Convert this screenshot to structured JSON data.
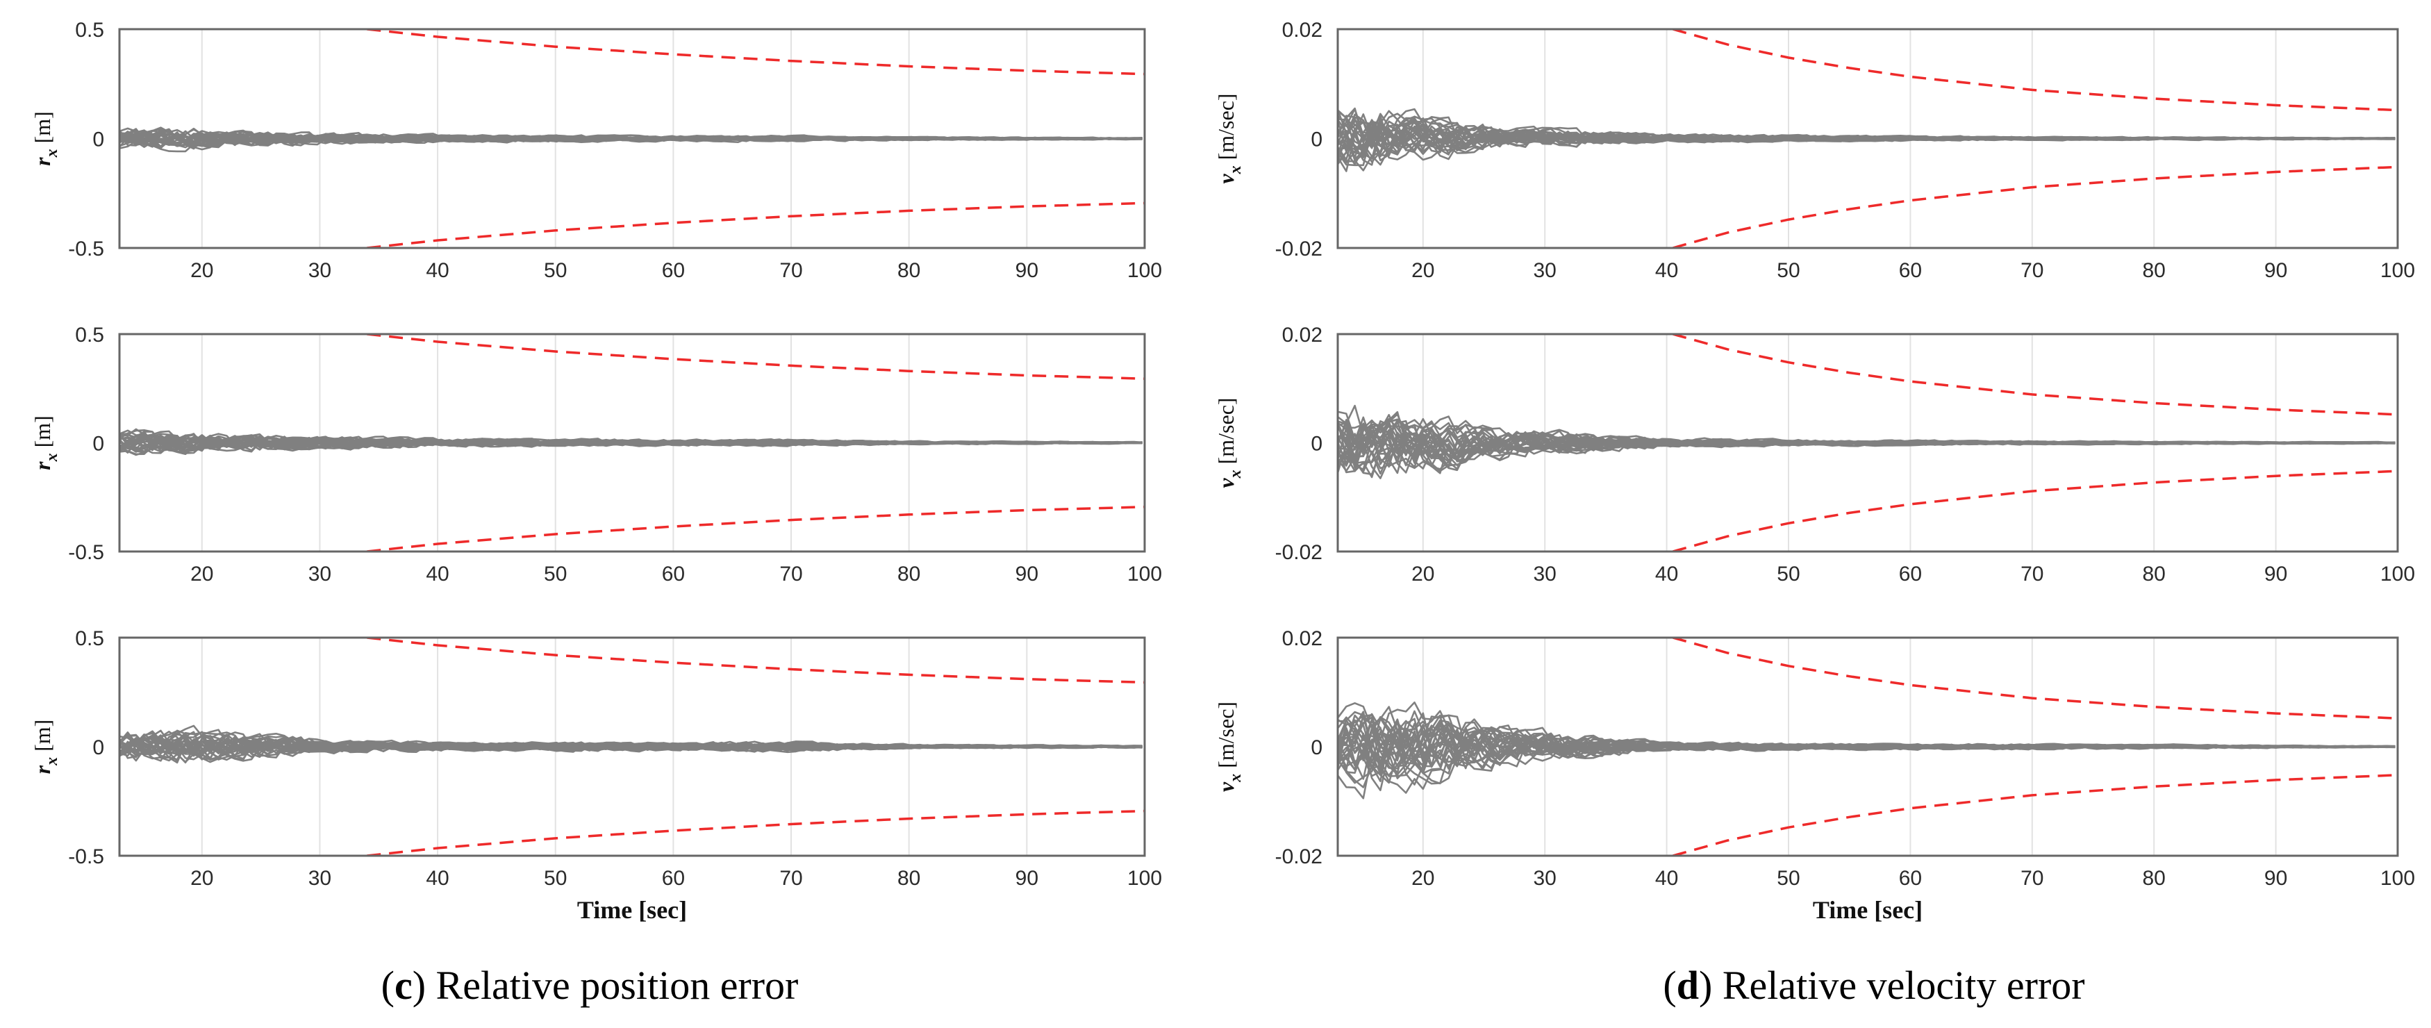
{
  "colors": {
    "trace": "#808080",
    "bound": "#ee2a2a",
    "grid": "#e2e2e2",
    "axis": "#666666"
  },
  "captions": {
    "left": {
      "letter": "c",
      "open": "(",
      "close": ")",
      "text": " Relative position error"
    },
    "right": {
      "letter": "d",
      "open": "(",
      "close": ")",
      "text": " Relative velocity error"
    }
  },
  "chart_data": [
    {
      "id": "c1",
      "type": "line",
      "title": "",
      "ylabel_var": "r",
      "ylabel_sub": "x",
      "ylabel_unit": "[m]",
      "xlabel": "",
      "xlim": [
        13,
        100
      ],
      "ylim": [
        -0.5,
        0.5
      ],
      "xticks": [
        20,
        30,
        40,
        50,
        60,
        70,
        80,
        90,
        100
      ],
      "xtick_labels": [
        "20",
        "30",
        "40",
        "50",
        "60",
        "70",
        "80",
        "90",
        "100"
      ],
      "yticks": [
        -0.5,
        0,
        0.5
      ],
      "ytick_labels": [
        "-0.5",
        "0",
        "0.5"
      ],
      "series": [
        {
          "name": "upper bound",
          "style": "dashed",
          "x": [
            34,
            40,
            50,
            60,
            70,
            80,
            90,
            100
          ],
          "y": [
            0.5,
            0.465,
            0.42,
            0.385,
            0.355,
            0.33,
            0.31,
            0.295
          ]
        },
        {
          "name": "lower bound",
          "style": "dashed",
          "x": [
            34,
            40,
            50,
            60,
            70,
            80,
            90,
            100
          ],
          "y": [
            -0.5,
            -0.465,
            -0.42,
            -0.385,
            -0.355,
            -0.33,
            -0.31,
            -0.295
          ]
        },
        {
          "name": "Monte Carlo error envelope",
          "style": "runs",
          "runs": 30,
          "amplitude": [
            [
              13,
              0.09
            ],
            [
              20,
              0.07
            ],
            [
              30,
              0.04
            ],
            [
              40,
              0.025
            ],
            [
              60,
              0.02
            ],
            [
              70,
              0.02
            ],
            [
              80,
              0.012
            ],
            [
              100,
              0.006
            ]
          ]
        }
      ]
    },
    {
      "id": "c2",
      "type": "line",
      "title": "",
      "ylabel_var": "r",
      "ylabel_sub": "x",
      "ylabel_unit": "[m]",
      "xlabel": "",
      "xlim": [
        13,
        100
      ],
      "ylim": [
        -0.5,
        0.5
      ],
      "xticks": [
        20,
        30,
        40,
        50,
        60,
        70,
        80,
        90,
        100
      ],
      "xtick_labels": [
        "20",
        "30",
        "40",
        "50",
        "60",
        "70",
        "80",
        "90",
        "100"
      ],
      "yticks": [
        -0.5,
        0,
        0.5
      ],
      "ytick_labels": [
        "-0.5",
        "0",
        "0.5"
      ],
      "series": [
        {
          "name": "upper bound",
          "style": "dashed",
          "x": [
            34,
            40,
            50,
            60,
            70,
            80,
            90,
            100
          ],
          "y": [
            0.5,
            0.465,
            0.42,
            0.385,
            0.355,
            0.33,
            0.31,
            0.295
          ]
        },
        {
          "name": "lower bound",
          "style": "dashed",
          "x": [
            34,
            40,
            50,
            60,
            70,
            80,
            90,
            100
          ],
          "y": [
            -0.5,
            -0.465,
            -0.42,
            -0.385,
            -0.355,
            -0.33,
            -0.31,
            -0.295
          ]
        },
        {
          "name": "Monte Carlo error envelope",
          "style": "runs",
          "runs": 30,
          "amplitude": [
            [
              13,
              0.1
            ],
            [
              20,
              0.07
            ],
            [
              30,
              0.045
            ],
            [
              40,
              0.03
            ],
            [
              60,
              0.022
            ],
            [
              70,
              0.022
            ],
            [
              80,
              0.012
            ],
            [
              100,
              0.006
            ]
          ]
        }
      ]
    },
    {
      "id": "c3",
      "type": "line",
      "title": "",
      "ylabel_var": "r",
      "ylabel_sub": "x",
      "ylabel_unit": "[m]",
      "xlabel": "Time [sec]",
      "xlim": [
        13,
        100
      ],
      "ylim": [
        -0.5,
        0.5
      ],
      "xticks": [
        20,
        30,
        40,
        50,
        60,
        70,
        80,
        90,
        100
      ],
      "xtick_labels": [
        "20",
        "30",
        "40",
        "50",
        "60",
        "70",
        "80",
        "90",
        "100"
      ],
      "yticks": [
        -0.5,
        0,
        0.5
      ],
      "ytick_labels": [
        "-0.5",
        "0",
        "0.5"
      ],
      "series": [
        {
          "name": "upper bound",
          "style": "dashed",
          "x": [
            34,
            40,
            50,
            60,
            70,
            80,
            90,
            100
          ],
          "y": [
            0.5,
            0.465,
            0.42,
            0.385,
            0.355,
            0.33,
            0.31,
            0.295
          ]
        },
        {
          "name": "lower bound",
          "style": "dashed",
          "x": [
            34,
            40,
            50,
            60,
            70,
            80,
            90,
            100
          ],
          "y": [
            -0.5,
            -0.465,
            -0.42,
            -0.385,
            -0.355,
            -0.33,
            -0.31,
            -0.295
          ]
        },
        {
          "name": "Monte Carlo error envelope",
          "style": "runs",
          "runs": 30,
          "amplitude": [
            [
              13,
              0.12
            ],
            [
              20,
              0.12
            ],
            [
              30,
              0.05
            ],
            [
              40,
              0.03
            ],
            [
              60,
              0.03
            ],
            [
              70,
              0.035
            ],
            [
              80,
              0.015
            ],
            [
              100,
              0.008
            ]
          ]
        }
      ]
    },
    {
      "id": "d1",
      "type": "line",
      "title": "",
      "ylabel_var": "v",
      "ylabel_sub": "x",
      "ylabel_unit": "[m/sec]",
      "xlabel": "",
      "xlim": [
        13,
        100
      ],
      "ylim": [
        -0.02,
        0.02
      ],
      "xticks": [
        20,
        30,
        40,
        50,
        60,
        70,
        80,
        90,
        100
      ],
      "xtick_labels": [
        "20",
        "30",
        "40",
        "50",
        "60",
        "70",
        "80",
        "90",
        "100"
      ],
      "yticks": [
        -0.02,
        0,
        0.02
      ],
      "ytick_labels": [
        "-0.02",
        "0",
        "0.02"
      ],
      "series": [
        {
          "name": "upper bound",
          "style": "dashed",
          "x": [
            40.5,
            45,
            50,
            55,
            60,
            70,
            80,
            90,
            100
          ],
          "y": [
            0.02,
            0.0172,
            0.0148,
            0.0129,
            0.0113,
            0.0089,
            0.0073,
            0.0061,
            0.0052
          ]
        },
        {
          "name": "lower bound",
          "style": "dashed",
          "x": [
            40.5,
            45,
            50,
            55,
            60,
            70,
            80,
            90,
            100
          ],
          "y": [
            -0.02,
            -0.0172,
            -0.0148,
            -0.0129,
            -0.0113,
            -0.0089,
            -0.0073,
            -0.0061,
            -0.0052
          ]
        },
        {
          "name": "Monte Carlo error envelope",
          "style": "runs",
          "runs": 30,
          "amplitude": [
            [
              13,
              0.011
            ],
            [
              20,
              0.006
            ],
            [
              27,
              0.003
            ],
            [
              40,
              0.0012
            ],
            [
              55,
              0.0008
            ],
            [
              70,
              0.0005
            ],
            [
              100,
              0.0002
            ]
          ]
        }
      ]
    },
    {
      "id": "d2",
      "type": "line",
      "title": "",
      "ylabel_var": "v",
      "ylabel_sub": "x",
      "ylabel_unit": "[m/sec]",
      "xlabel": "",
      "xlim": [
        13,
        100
      ],
      "ylim": [
        -0.02,
        0.02
      ],
      "xticks": [
        20,
        30,
        40,
        50,
        60,
        70,
        80,
        90,
        100
      ],
      "xtick_labels": [
        "20",
        "30",
        "40",
        "50",
        "60",
        "70",
        "80",
        "90",
        "100"
      ],
      "yticks": [
        -0.02,
        0,
        0.02
      ],
      "ytick_labels": [
        "-0.02",
        "0",
        "0.02"
      ],
      "series": [
        {
          "name": "upper bound",
          "style": "dashed",
          "x": [
            40.5,
            45,
            50,
            55,
            60,
            70,
            80,
            90,
            100
          ],
          "y": [
            0.02,
            0.0172,
            0.0148,
            0.0129,
            0.0113,
            0.0089,
            0.0073,
            0.0061,
            0.0052
          ]
        },
        {
          "name": "lower bound",
          "style": "dashed",
          "x": [
            40.5,
            45,
            50,
            55,
            60,
            70,
            80,
            90,
            100
          ],
          "y": [
            -0.02,
            -0.0172,
            -0.0148,
            -0.0129,
            -0.0113,
            -0.0089,
            -0.0073,
            -0.0061,
            -0.0052
          ]
        },
        {
          "name": "Monte Carlo error envelope",
          "style": "runs",
          "runs": 30,
          "amplitude": [
            [
              13,
              0.011
            ],
            [
              20,
              0.008
            ],
            [
              27,
              0.004
            ],
            [
              40,
              0.0012
            ],
            [
              55,
              0.0008
            ],
            [
              70,
              0.0005
            ],
            [
              100,
              0.0002
            ]
          ]
        }
      ]
    },
    {
      "id": "d3",
      "type": "line",
      "title": "",
      "ylabel_var": "v",
      "ylabel_sub": "x",
      "ylabel_unit": "[m/sec]",
      "xlabel": "Time [sec]",
      "xlim": [
        13,
        100
      ],
      "ylim": [
        -0.02,
        0.02
      ],
      "xticks": [
        20,
        30,
        40,
        50,
        60,
        70,
        80,
        90,
        100
      ],
      "xtick_labels": [
        "20",
        "30",
        "40",
        "50",
        "60",
        "70",
        "80",
        "90",
        "100"
      ],
      "yticks": [
        -0.02,
        0,
        0.02
      ],
      "ytick_labels": [
        "-0.02",
        "0",
        "0.02"
      ],
      "series": [
        {
          "name": "upper bound",
          "style": "dashed",
          "x": [
            40.5,
            45,
            50,
            55,
            60,
            70,
            80,
            90,
            100
          ],
          "y": [
            0.02,
            0.0172,
            0.0148,
            0.0129,
            0.0113,
            0.0089,
            0.0073,
            0.0061,
            0.0052
          ]
        },
        {
          "name": "lower bound",
          "style": "dashed",
          "x": [
            40.5,
            45,
            50,
            55,
            60,
            70,
            80,
            90,
            100
          ],
          "y": [
            -0.02,
            -0.0172,
            -0.0148,
            -0.0129,
            -0.0113,
            -0.0089,
            -0.0073,
            -0.0061,
            -0.0052
          ]
        },
        {
          "name": "Monte Carlo error envelope",
          "style": "runs",
          "runs": 30,
          "amplitude": [
            [
              13,
              0.012
            ],
            [
              20,
              0.011
            ],
            [
              27,
              0.005
            ],
            [
              40,
              0.0012
            ],
            [
              55,
              0.0009
            ],
            [
              70,
              0.0008
            ],
            [
              100,
              0.0002
            ]
          ]
        }
      ]
    }
  ]
}
